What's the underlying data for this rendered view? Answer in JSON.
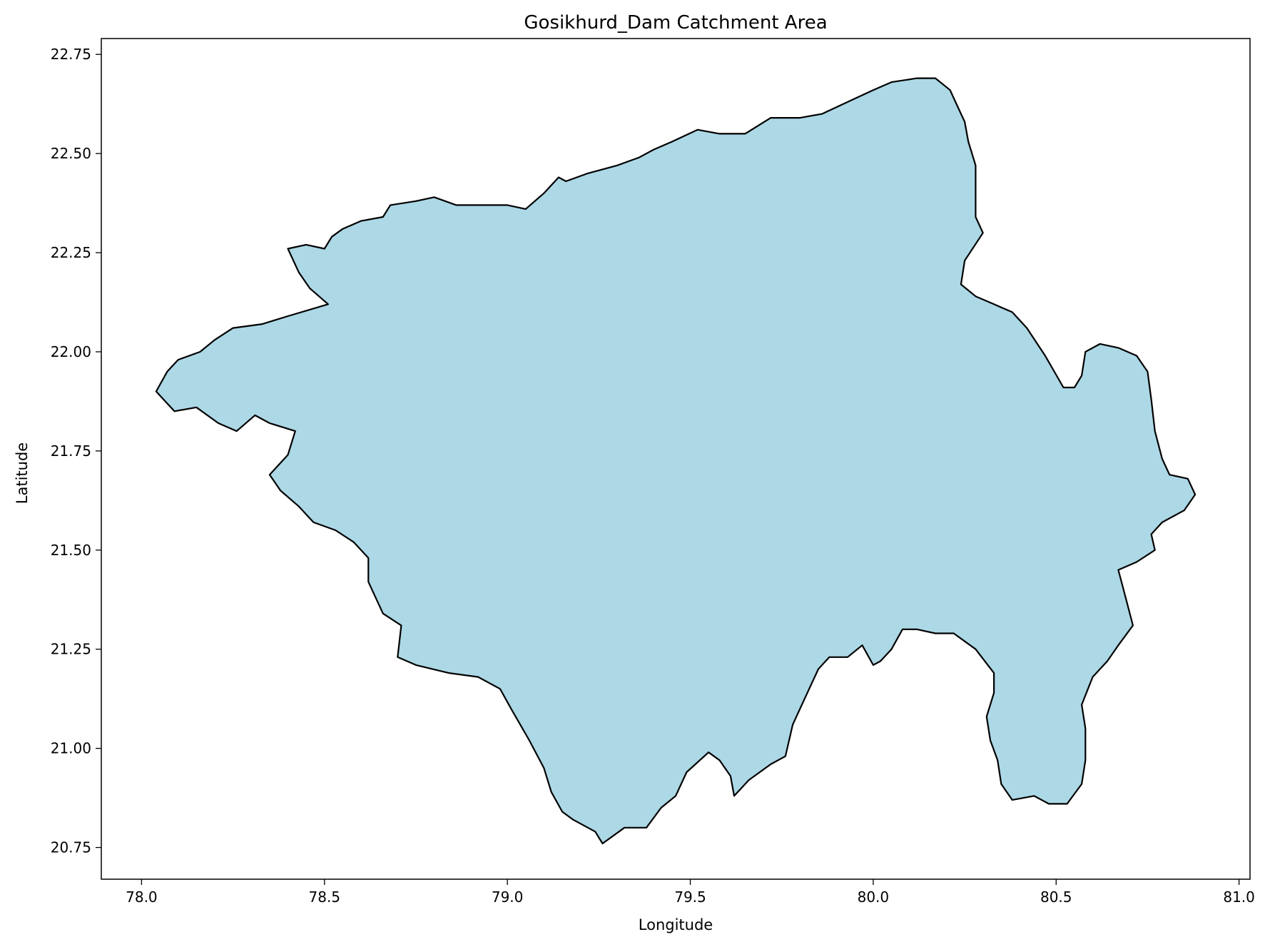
{
  "chart_data": {
    "type": "map",
    "title": "Gosikhurd_Dam Catchment Area",
    "xlabel": "Longitude",
    "ylabel": "Latitude",
    "xlim": [
      77.89,
      81.03
    ],
    "ylim": [
      20.67,
      22.79
    ],
    "xticks": [
      78.0,
      78.5,
      79.0,
      79.5,
      80.0,
      80.5,
      81.0
    ],
    "xtick_labels": [
      "78.0",
      "78.5",
      "79.0",
      "79.5",
      "80.0",
      "80.5",
      "81.0"
    ],
    "yticks": [
      20.75,
      21.0,
      21.25,
      21.5,
      21.75,
      22.0,
      22.25,
      22.5,
      22.75
    ],
    "ytick_labels": [
      "20.75",
      "21.00",
      "21.25",
      "21.50",
      "21.75",
      "22.00",
      "22.25",
      "22.50",
      "22.75"
    ],
    "grid": false,
    "fill_color": "#add8e6",
    "edge_color": "#000000",
    "region": {
      "name": "Gosikhurd_Dam",
      "boundary": [
        [
          78.4,
          22.26
        ],
        [
          78.45,
          22.27
        ],
        [
          78.5,
          22.26
        ],
        [
          78.52,
          22.29
        ],
        [
          78.55,
          22.31
        ],
        [
          78.6,
          22.33
        ],
        [
          78.66,
          22.34
        ],
        [
          78.68,
          22.37
        ],
        [
          78.75,
          22.38
        ],
        [
          78.8,
          22.39
        ],
        [
          78.86,
          22.37
        ],
        [
          78.92,
          22.37
        ],
        [
          79.0,
          22.37
        ],
        [
          79.05,
          22.36
        ],
        [
          79.1,
          22.4
        ],
        [
          79.14,
          22.44
        ],
        [
          79.16,
          22.43
        ],
        [
          79.22,
          22.45
        ],
        [
          79.3,
          22.47
        ],
        [
          79.36,
          22.49
        ],
        [
          79.4,
          22.51
        ],
        [
          79.45,
          22.53
        ],
        [
          79.52,
          22.56
        ],
        [
          79.58,
          22.55
        ],
        [
          79.65,
          22.55
        ],
        [
          79.72,
          22.59
        ],
        [
          79.8,
          22.59
        ],
        [
          79.86,
          22.6
        ],
        [
          79.93,
          22.63
        ],
        [
          80.0,
          22.66
        ],
        [
          80.05,
          22.68
        ],
        [
          80.12,
          22.69
        ],
        [
          80.17,
          22.69
        ],
        [
          80.21,
          22.66
        ],
        [
          80.23,
          22.62
        ],
        [
          80.25,
          22.58
        ],
        [
          80.26,
          22.53
        ],
        [
          80.28,
          22.47
        ],
        [
          80.28,
          22.4
        ],
        [
          80.28,
          22.34
        ],
        [
          80.3,
          22.3
        ],
        [
          80.25,
          22.23
        ],
        [
          80.24,
          22.17
        ],
        [
          80.28,
          22.14
        ],
        [
          80.33,
          22.12
        ],
        [
          80.38,
          22.1
        ],
        [
          80.42,
          22.06
        ],
        [
          80.47,
          21.99
        ],
        [
          80.52,
          21.91
        ],
        [
          80.55,
          21.91
        ],
        [
          80.57,
          21.94
        ],
        [
          80.58,
          22.0
        ],
        [
          80.62,
          22.02
        ],
        [
          80.67,
          22.01
        ],
        [
          80.72,
          21.99
        ],
        [
          80.75,
          21.95
        ],
        [
          80.76,
          21.88
        ],
        [
          80.77,
          21.8
        ],
        [
          80.79,
          21.73
        ],
        [
          80.81,
          21.69
        ],
        [
          80.86,
          21.68
        ],
        [
          80.88,
          21.64
        ],
        [
          80.85,
          21.6
        ],
        [
          80.79,
          21.57
        ],
        [
          80.76,
          21.54
        ],
        [
          80.77,
          21.5
        ],
        [
          80.72,
          21.47
        ],
        [
          80.67,
          21.45
        ],
        [
          80.69,
          21.38
        ],
        [
          80.71,
          21.31
        ],
        [
          80.67,
          21.26
        ],
        [
          80.64,
          21.22
        ],
        [
          80.6,
          21.18
        ],
        [
          80.57,
          21.11
        ],
        [
          80.58,
          21.05
        ],
        [
          80.58,
          20.97
        ],
        [
          80.57,
          20.91
        ],
        [
          80.53,
          20.86
        ],
        [
          80.48,
          20.86
        ],
        [
          80.44,
          20.88
        ],
        [
          80.38,
          20.87
        ],
        [
          80.35,
          20.91
        ],
        [
          80.34,
          20.97
        ],
        [
          80.32,
          21.02
        ],
        [
          80.31,
          21.08
        ],
        [
          80.33,
          21.14
        ],
        [
          80.33,
          21.19
        ],
        [
          80.28,
          21.25
        ],
        [
          80.22,
          21.29
        ],
        [
          80.17,
          21.29
        ],
        [
          80.12,
          21.3
        ],
        [
          80.08,
          21.3
        ],
        [
          80.05,
          21.25
        ],
        [
          80.02,
          21.22
        ],
        [
          80.0,
          21.21
        ],
        [
          79.97,
          21.26
        ],
        [
          79.93,
          21.23
        ],
        [
          79.88,
          21.23
        ],
        [
          79.85,
          21.2
        ],
        [
          79.82,
          21.14
        ],
        [
          79.78,
          21.06
        ],
        [
          79.76,
          20.98
        ],
        [
          79.72,
          20.96
        ],
        [
          79.66,
          20.92
        ],
        [
          79.62,
          20.88
        ],
        [
          79.61,
          20.93
        ],
        [
          79.58,
          20.97
        ],
        [
          79.55,
          20.99
        ],
        [
          79.49,
          20.94
        ],
        [
          79.46,
          20.88
        ],
        [
          79.42,
          20.85
        ],
        [
          79.38,
          20.8
        ],
        [
          79.32,
          20.8
        ],
        [
          79.26,
          20.76
        ],
        [
          79.24,
          20.79
        ],
        [
          79.18,
          20.82
        ],
        [
          79.15,
          20.84
        ],
        [
          79.12,
          20.89
        ],
        [
          79.1,
          20.95
        ],
        [
          79.06,
          21.02
        ],
        [
          79.01,
          21.1
        ],
        [
          78.98,
          21.15
        ],
        [
          78.92,
          21.18
        ],
        [
          78.84,
          21.19
        ],
        [
          78.75,
          21.21
        ],
        [
          78.7,
          21.23
        ],
        [
          78.71,
          21.31
        ],
        [
          78.66,
          21.34
        ],
        [
          78.62,
          21.42
        ],
        [
          78.62,
          21.48
        ],
        [
          78.58,
          21.52
        ],
        [
          78.53,
          21.55
        ],
        [
          78.47,
          21.57
        ],
        [
          78.43,
          21.61
        ],
        [
          78.38,
          21.65
        ],
        [
          78.35,
          21.69
        ],
        [
          78.4,
          21.74
        ],
        [
          78.42,
          21.8
        ],
        [
          78.35,
          21.82
        ],
        [
          78.31,
          21.84
        ],
        [
          78.26,
          21.8
        ],
        [
          78.21,
          21.82
        ],
        [
          78.15,
          21.86
        ],
        [
          78.09,
          21.85
        ],
        [
          78.06,
          21.88
        ],
        [
          78.04,
          21.9
        ],
        [
          78.07,
          21.95
        ],
        [
          78.1,
          21.98
        ],
        [
          78.16,
          22.0
        ],
        [
          78.2,
          22.03
        ],
        [
          78.25,
          22.06
        ],
        [
          78.33,
          22.07
        ],
        [
          78.4,
          22.09
        ],
        [
          78.51,
          22.12
        ],
        [
          78.46,
          22.16
        ],
        [
          78.43,
          22.2
        ],
        [
          78.4,
          22.26
        ]
      ]
    }
  }
}
